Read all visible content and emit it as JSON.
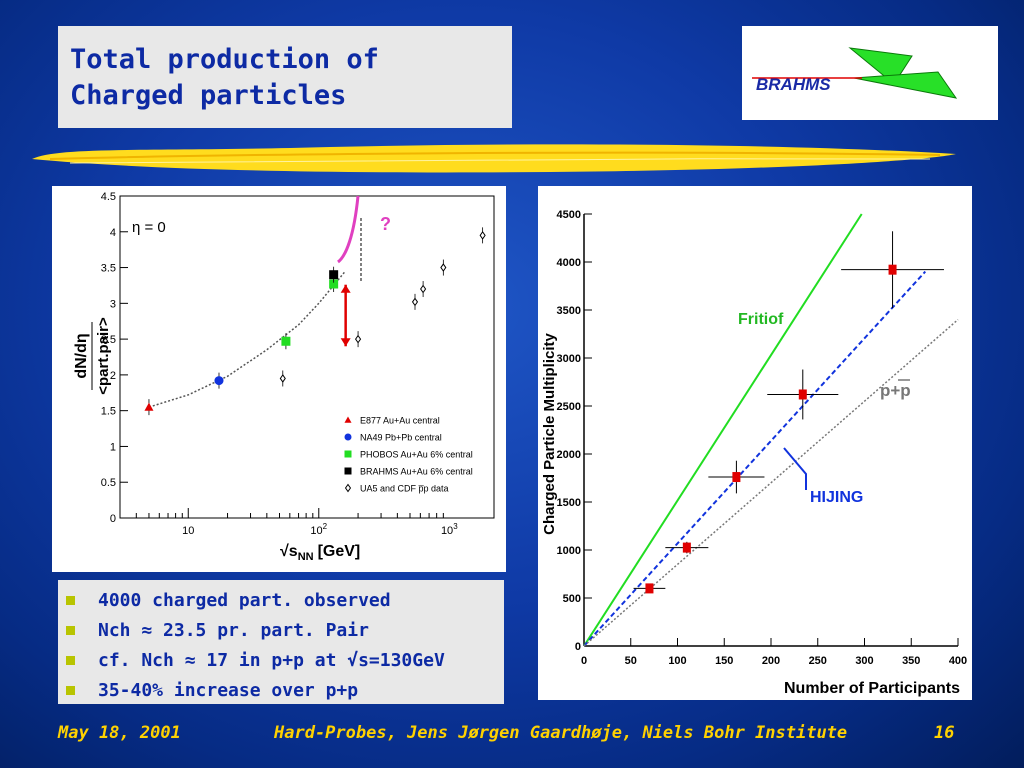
{
  "title": {
    "line1": "Total production of",
    "line2": "Charged particles"
  },
  "logo": {
    "text": "BRAHMS"
  },
  "colors": {
    "background": "#0f3aa6",
    "title_text": "#0d2aa4",
    "footer_text": "#ffd200",
    "bullet": "#b8c400",
    "rule": "#ffdc1e"
  },
  "bullets": [
    "4000 charged part. observed",
    "Nch ≈ 23.5 pr. part. Pair",
    "cf. Nch ≈ 17 in p+p at √s=130GeV",
    "35-40% increase over p+p"
  ],
  "footer": {
    "date": "May 18, 2001",
    "center": "Hard-Probes, Jens Jørgen Gaardhøje, Niels Bohr Institute",
    "page": "16"
  },
  "chart_data": [
    {
      "type": "scatter",
      "eta_label": "η = 0",
      "xlabel": "√s",
      "xlabel_sub": "NN",
      "xlabel_unit": "[GeV]",
      "ylabel_num": "dN/dη",
      "ylabel_den": "<part.pair>",
      "xscale": "log",
      "xlim": [
        3,
        2200
      ],
      "ylim": [
        0,
        4.5
      ],
      "xtick_labels": [
        {
          "x": 10,
          "label": "10"
        },
        {
          "x": 100,
          "label": "10",
          "exp": "2"
        },
        {
          "x": 1000,
          "label": "10",
          "exp": "3"
        }
      ],
      "yticks": [
        "0",
        "0.5",
        "1",
        "1.5",
        "2",
        "2.5",
        "3",
        "3.5",
        "4",
        "4.5"
      ],
      "question": "?",
      "series": [
        {
          "name": "E877 Au+Au central",
          "marker": "triangle",
          "color": "#e00000",
          "points": [
            [
              5,
              1.55
            ]
          ]
        },
        {
          "name": "NA49 Pb+Pb central",
          "marker": "circle",
          "color": "#1133dd",
          "points": [
            [
              17.2,
              1.92
            ]
          ]
        },
        {
          "name": "PHOBOS Au+Au 6% central",
          "marker": "square",
          "color": "#22dd22",
          "points": [
            [
              56,
              2.47
            ],
            [
              130,
              3.27
            ]
          ]
        },
        {
          "name": "BRAHMS Au+Au 6% central",
          "marker": "square",
          "color": "#000000",
          "points": [
            [
              130,
              3.4
            ]
          ]
        },
        {
          "name": "UA5 and CDF p̅p data",
          "marker": "diamond",
          "color": "#000000",
          "points": [
            [
              53,
              1.95
            ],
            [
              200,
              2.5
            ],
            [
              546,
              3.02
            ],
            [
              630,
              3.2
            ],
            [
              900,
              3.5
            ],
            [
              1800,
              3.95
            ]
          ]
        }
      ],
      "fit_curve": {
        "x": [
          5,
          10,
          20,
          40,
          70,
          100,
          130,
          160
        ],
        "y": [
          1.55,
          1.72,
          1.98,
          2.35,
          2.7,
          3.0,
          3.25,
          3.45
        ]
      },
      "arrow": {
        "x": 130,
        "y_from": 3.4,
        "y_to": 2.4
      }
    },
    {
      "type": "line",
      "ylabel": "Charged Particle Multiplicity",
      "xlabel": "Number of Participants",
      "xlim": [
        0,
        400
      ],
      "ylim": [
        0,
        4500
      ],
      "xticks": [
        "0",
        "50",
        "100",
        "150",
        "200",
        "250",
        "300",
        "350",
        "400"
      ],
      "yticks": [
        "0",
        "500",
        "1000",
        "1500",
        "2000",
        "2500",
        "3000",
        "3500",
        "4000",
        "4500"
      ],
      "series": [
        {
          "name": "BRAHMS",
          "color": "#e00000",
          "points": [
            {
              "x": 70,
              "y": 600,
              "xerr": 17,
              "yerr": 40
            },
            {
              "x": 110,
              "y": 1025,
              "xerr": 23,
              "yerr": 60
            },
            {
              "x": 163,
              "y": 1760,
              "xerr": 30,
              "yerr": 170
            },
            {
              "x": 234,
              "y": 2620,
              "xerr": 38,
              "yerr": 260
            },
            {
              "x": 330,
              "y": 3920,
              "xerr": 55,
              "yerr": 400
            }
          ]
        }
      ],
      "lines": [
        {
          "name": "Fritiof",
          "color": "#22dd22",
          "style": "solid",
          "x": [
            0,
            297
          ],
          "y": [
            0,
            4500
          ]
        },
        {
          "name": "HIJING",
          "color": "#1133dd",
          "style": "dashed",
          "x": [
            0,
            365
          ],
          "y": [
            0,
            3900
          ]
        },
        {
          "name": "p+p",
          "color": "#777777",
          "style": "dotted",
          "x": [
            0,
            400
          ],
          "y": [
            0,
            3400
          ]
        }
      ]
    }
  ]
}
